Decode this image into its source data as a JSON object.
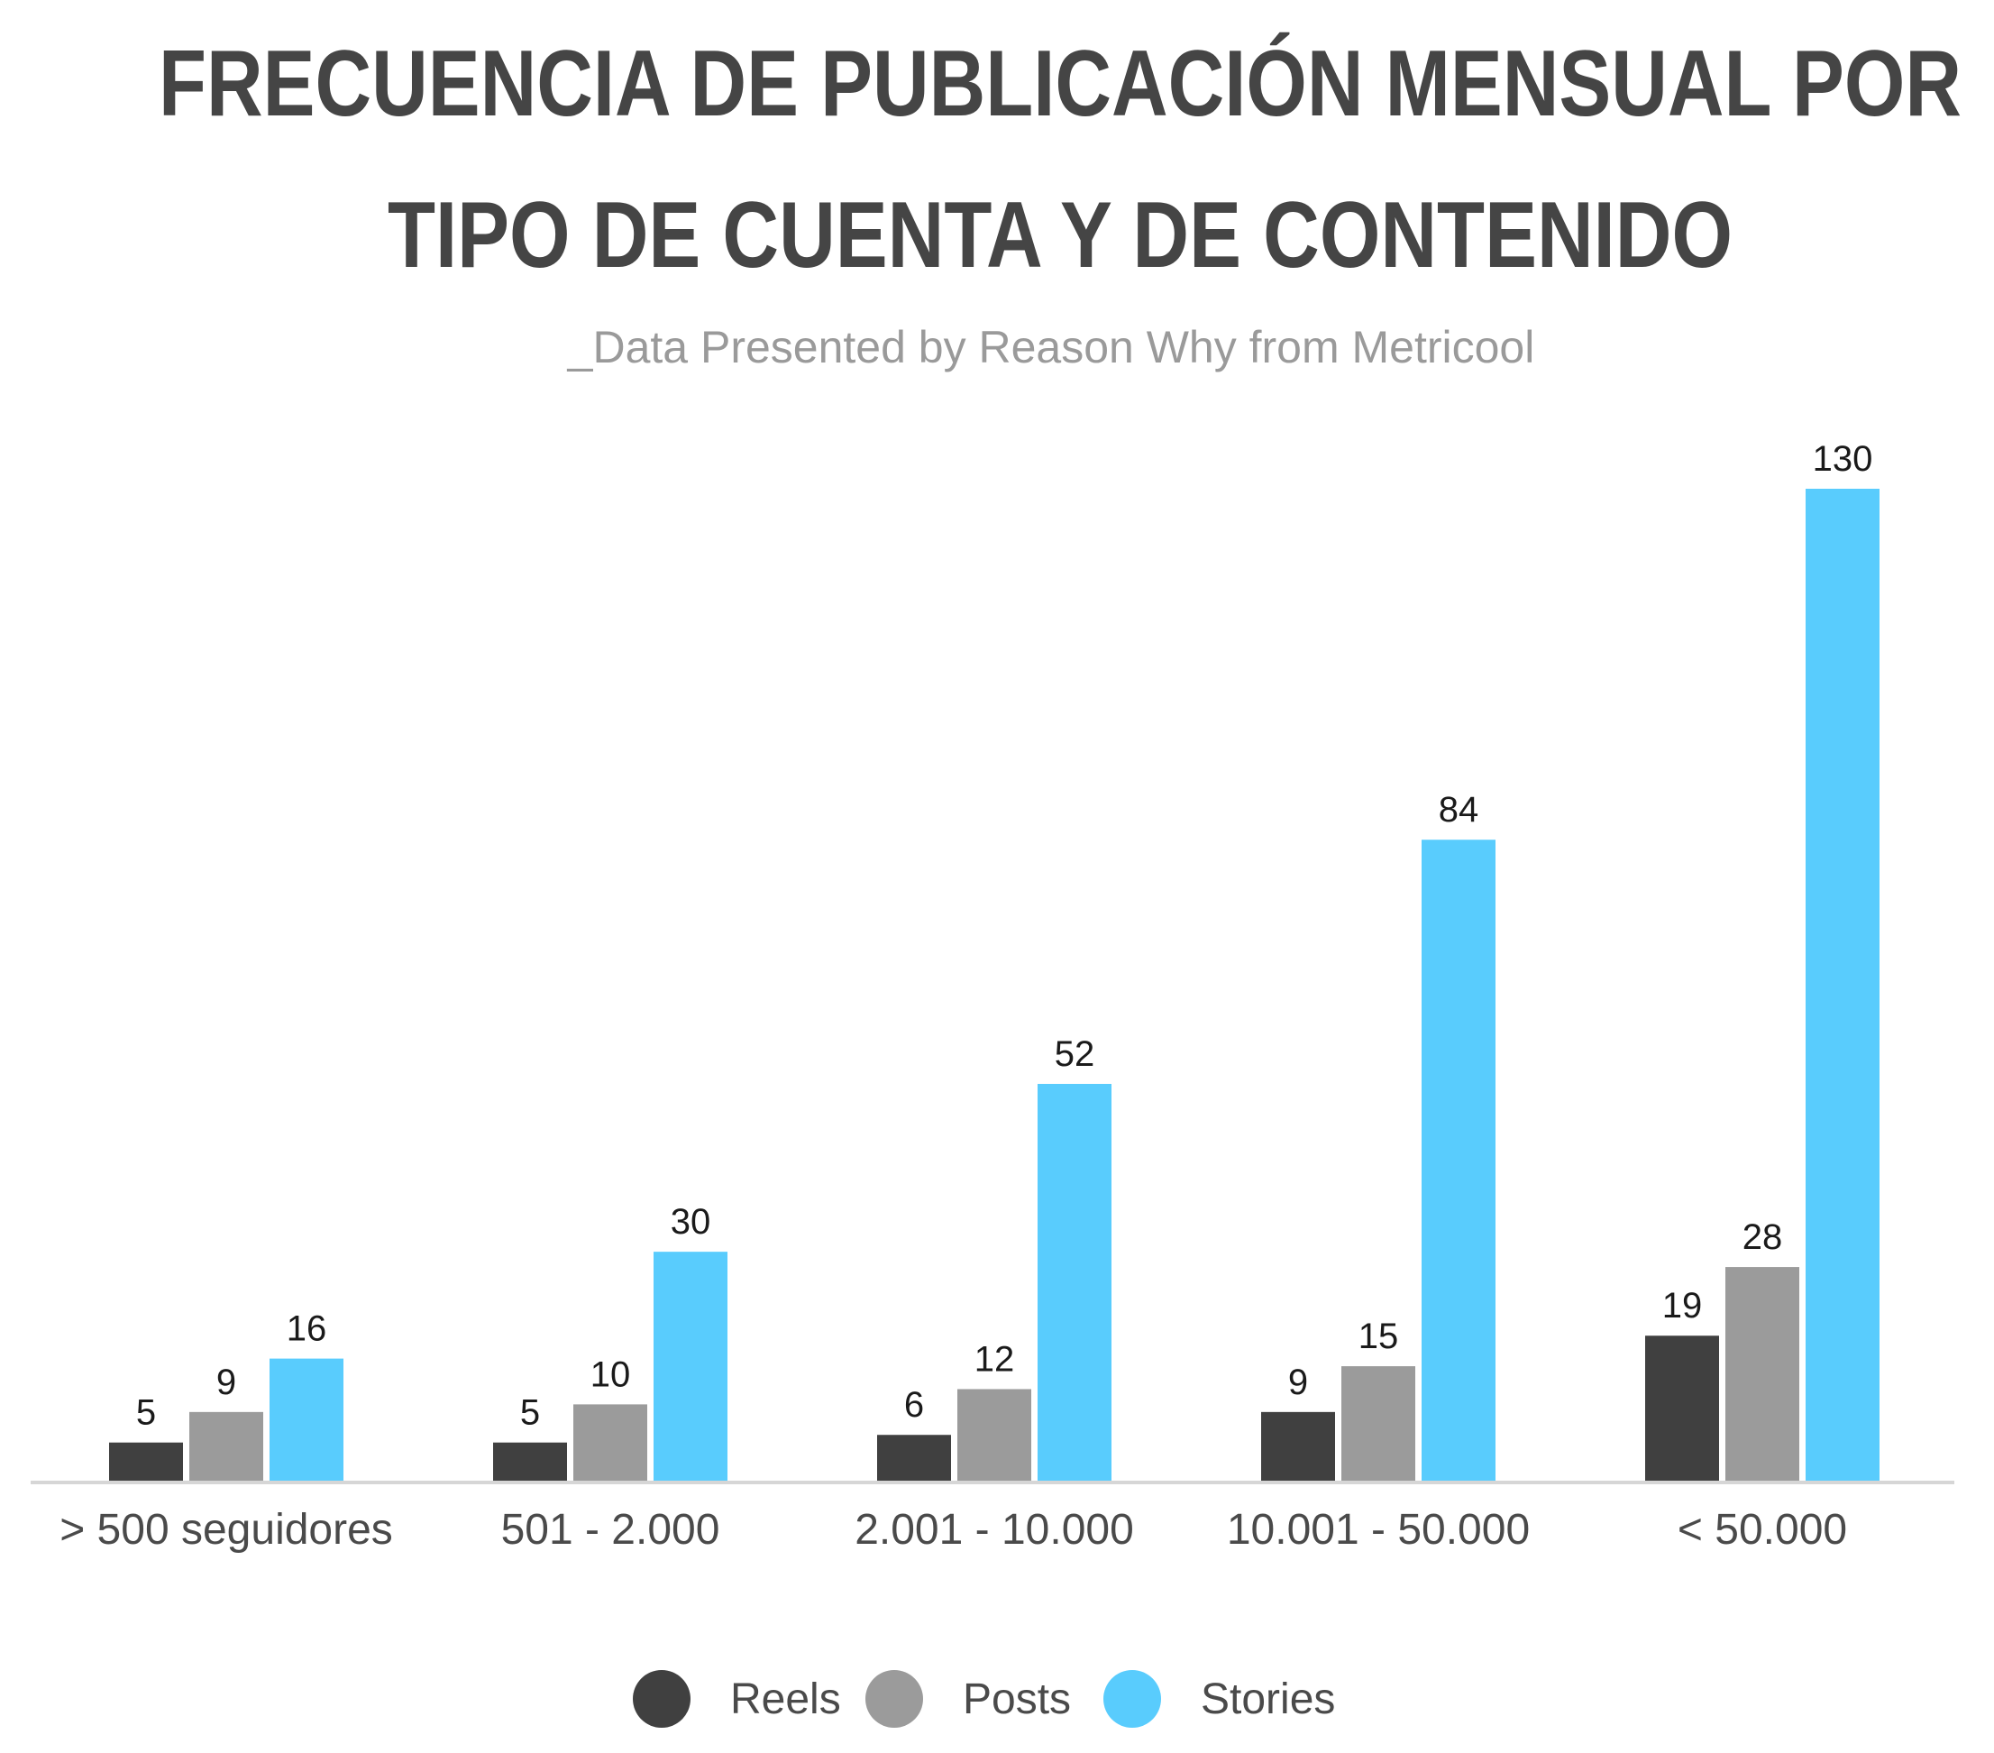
{
  "chart_data": {
    "type": "bar",
    "title_lines": [
      "FRECUENCIA DE PUBLICACIÓN MENSUAL POR",
      "TIPO DE CUENTA Y DE CONTENIDO"
    ],
    "subtitle": "_Data Presented by Reason Why from Metricool",
    "xlabel": "",
    "ylabel": "",
    "categories": [
      "> 500 seguidores",
      "501 - 2.000",
      "2.001 - 10.000",
      "10.001 - 50.000",
      "< 50.000"
    ],
    "series": [
      {
        "name": "Reels",
        "color": "#404040",
        "values": [
          5,
          5,
          6,
          9,
          19
        ]
      },
      {
        "name": "Posts",
        "color": "#9b9b9b",
        "values": [
          9,
          10,
          12,
          15,
          28
        ]
      },
      {
        "name": "Stories",
        "color": "#59ccfd",
        "values": [
          16,
          30,
          52,
          84,
          130
        ]
      }
    ],
    "ylim": [
      0,
      130
    ],
    "grid": false,
    "data_labels": true,
    "legend": "bottom-center",
    "axis_color": "#d6d6d6"
  }
}
